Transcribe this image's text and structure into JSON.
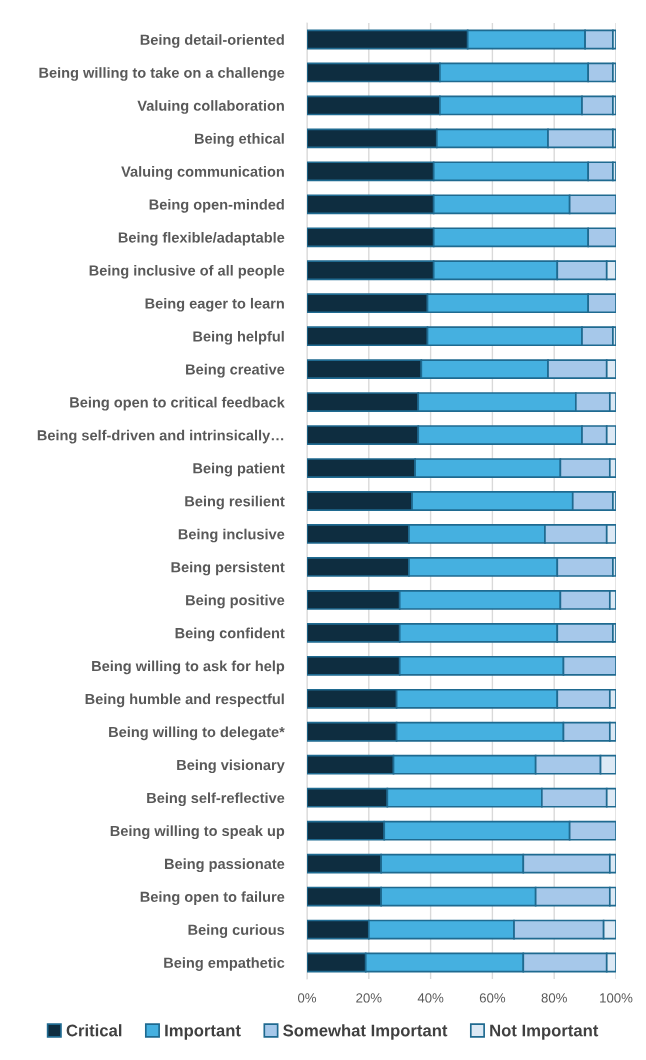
{
  "chart_data": {
    "type": "bar",
    "orientation": "horizontal",
    "stacked": true,
    "categories": [
      "Being detail-oriented",
      "Being willing to take on a challenge",
      "Valuing collaboration",
      "Being ethical",
      "Valuing communication",
      "Being open-minded",
      "Being flexible/adaptable",
      "Being inclusive of all people",
      "Being eager to learn",
      "Being helpful",
      "Being creative",
      "Being open to critical feedback",
      "Being self-driven and intrinsically…",
      "Being patient",
      "Being resilient",
      "Being inclusive",
      "Being persistent",
      "Being positive",
      "Being confident",
      "Being willing to ask for help",
      "Being humble and respectful",
      "Being willing to delegate*",
      "Being visionary",
      "Being self-reflective",
      "Being willing to speak up",
      "Being passionate",
      "Being open to failure",
      "Being curious",
      "Being empathetic"
    ],
    "series": [
      {
        "name": "Critical",
        "color": "#0e2d40",
        "values": [
          52,
          43,
          43,
          42,
          41,
          41,
          41,
          41,
          39,
          39,
          37,
          36,
          36,
          35,
          34,
          33,
          33,
          30,
          30,
          30,
          29,
          29,
          28,
          26,
          25,
          24,
          24,
          20,
          19
        ]
      },
      {
        "name": "Important",
        "color": "#45b0e0",
        "values": [
          38,
          48,
          46,
          36,
          50,
          44,
          50,
          40,
          52,
          50,
          41,
          51,
          53,
          47,
          52,
          44,
          48,
          52,
          51,
          53,
          52,
          54,
          46,
          50,
          60,
          46,
          50,
          47,
          51
        ]
      },
      {
        "name": "Somewhat Important",
        "color": "#a6c8ea",
        "values": [
          9,
          8,
          10,
          21,
          8,
          15,
          9,
          16,
          9,
          10,
          19,
          11,
          8,
          16,
          13,
          20,
          18,
          16,
          18,
          17,
          17,
          15,
          21,
          21,
          15,
          28,
          24,
          29,
          27
        ]
      },
      {
        "name": "Not Important",
        "color": "#dce9f5",
        "values": [
          1,
          1,
          1,
          1,
          1,
          0,
          0,
          3,
          0,
          1,
          3,
          2,
          3,
          2,
          1,
          3,
          1,
          2,
          1,
          0,
          2,
          2,
          5,
          3,
          0,
          2,
          2,
          4,
          3
        ]
      }
    ],
    "xlim": [
      0,
      100
    ],
    "xticks": [
      {
        "value": 0,
        "label": "0%"
      },
      {
        "value": 20,
        "label": "20%"
      },
      {
        "value": 40,
        "label": "40%"
      },
      {
        "value": 60,
        "label": "60%"
      },
      {
        "value": 80,
        "label": "80%"
      },
      {
        "value": 100,
        "label": "100%"
      }
    ],
    "grid": "x",
    "legend": "bottom"
  }
}
